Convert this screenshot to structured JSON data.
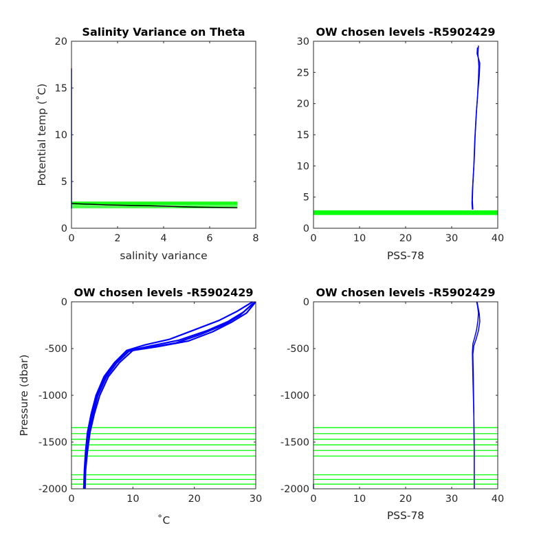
{
  "chart_data": [
    {
      "type": "line",
      "title": "Salinity Variance on Theta",
      "xlabel": "salinity variance",
      "ylabel": "Potential temp (˚C)",
      "xlim": [
        0,
        8
      ],
      "ylim": [
        0,
        20
      ],
      "xticks": [
        "0",
        "2",
        "4",
        "6",
        "8"
      ],
      "yticks": [
        "0",
        "5",
        "10",
        "15",
        "20"
      ],
      "series": [
        {
          "color": "#0000ff",
          "x": [
            0,
            0
          ],
          "y": [
            2.1,
            17.1
          ]
        },
        {
          "color": "#000000",
          "x": [
            0,
            1.5,
            3.5,
            5.5,
            7.2
          ],
          "y": [
            2.65,
            2.5,
            2.4,
            2.25,
            2.2
          ]
        }
      ],
      "chosen_levels": {
        "color": "#00ff00",
        "x_extent": [
          0,
          7.2
        ],
        "y": [
          2.2,
          2.35,
          2.5,
          2.6,
          2.7,
          2.8
        ]
      }
    },
    {
      "type": "line",
      "title": "OW chosen levels -R5902429",
      "xlabel": "PSS-78",
      "ylabel": "",
      "xlim": [
        0,
        40
      ],
      "ylim": [
        0,
        30
      ],
      "xticks": [
        "0",
        "10",
        "20",
        "30",
        "40"
      ],
      "yticks": [
        "0",
        "5",
        "10",
        "15",
        "20",
        "25",
        "30"
      ],
      "series": [
        {
          "color": "#0000ff",
          "x": [
            34.5,
            34.4,
            34.5,
            34.8,
            35.0,
            35.3,
            35.6,
            35.8,
            35.9,
            35.7,
            35.8
          ],
          "y": [
            3,
            4,
            6,
            10,
            14,
            18,
            21,
            24,
            26,
            28,
            29.3
          ]
        },
        {
          "color": "#0000ff",
          "x": [
            34.6,
            34.5,
            34.6,
            34.9,
            35.1,
            35.4,
            35.7,
            36.0,
            36.1,
            35.5,
            35.6
          ],
          "y": [
            3,
            4.5,
            7,
            11,
            15,
            19,
            22,
            24.5,
            26.5,
            28,
            29
          ]
        }
      ],
      "chosen_levels": {
        "color": "#00ff00",
        "x_extent": [
          0,
          40
        ],
        "y": [
          2.2,
          2.35,
          2.5,
          2.6,
          2.7,
          2.8
        ]
      }
    },
    {
      "type": "line",
      "title": "OW chosen levels -R5902429",
      "xlabel": "˚C",
      "ylabel": "Pressure (dbar)",
      "xlim": [
        0,
        30
      ],
      "ylim": [
        -2000,
        0
      ],
      "xticks": [
        "0",
        "10",
        "20",
        "30"
      ],
      "yticks": [
        "-2000",
        "-1500",
        "-1000",
        "-500",
        "0"
      ],
      "series": [
        {
          "color": "#0000ff",
          "x": [
            2.0,
            2.1,
            2.3,
            2.6,
            3.2,
            4.0,
            5.3,
            7.0,
            9.0,
            12.0,
            16.0,
            20.0,
            24.0,
            27.0,
            29.5
          ],
          "y": [
            -2000,
            -1800,
            -1600,
            -1400,
            -1200,
            -1000,
            -800,
            -650,
            -520,
            -460,
            -400,
            -300,
            -200,
            -100,
            0
          ]
        },
        {
          "color": "#0000ff",
          "x": [
            2.2,
            2.3,
            2.6,
            3.0,
            3.7,
            4.6,
            6.0,
            7.8,
            10.0,
            14.0,
            19.0,
            23.0,
            26.0,
            28.5,
            30.0
          ],
          "y": [
            -2000,
            -1800,
            -1600,
            -1400,
            -1200,
            -1000,
            -800,
            -650,
            -520,
            -480,
            -420,
            -320,
            -220,
            -120,
            0
          ]
        },
        {
          "color": "#0000ff",
          "x": [
            2.1,
            2.2,
            2.5,
            2.8,
            3.5,
            4.3,
            5.7,
            7.4,
            9.5,
            13.0,
            17.5,
            22.0,
            25.5,
            28.0,
            29.8
          ],
          "y": [
            -2000,
            -1800,
            -1600,
            -1400,
            -1200,
            -1000,
            -800,
            -650,
            -520,
            -470,
            -410,
            -310,
            -210,
            -110,
            -5
          ]
        },
        {
          "color": "#0000ff",
          "x": [
            2.0,
            2.15,
            2.4,
            2.7,
            3.3,
            4.2,
            5.5,
            7.2,
            9.2,
            12.5,
            17.0,
            21.0,
            25.0,
            27.5,
            29.5
          ],
          "y": [
            -2000,
            -1800,
            -1600,
            -1400,
            -1200,
            -1000,
            -800,
            -650,
            -530,
            -490,
            -440,
            -350,
            -240,
            -140,
            -20
          ]
        }
      ],
      "chosen_levels": {
        "color": "#00ff00",
        "x_extent": [
          0,
          30
        ],
        "y": [
          -1345,
          -1410,
          -1470,
          -1530,
          -1590,
          -1650,
          -1850,
          -1900,
          -1950
        ]
      }
    },
    {
      "type": "line",
      "title": "OW chosen levels -R5902429",
      "xlabel": "PSS-78",
      "ylabel": "",
      "xlim": [
        0,
        40
      ],
      "ylim": [
        -2000,
        0
      ],
      "xticks": [
        "0",
        "10",
        "20",
        "30",
        "40"
      ],
      "yticks": [
        "-2000",
        "-1500",
        "-1000",
        "-500",
        "0"
      ],
      "series": [
        {
          "color": "#0000ff",
          "x": [
            34.9,
            34.9,
            34.8,
            34.6,
            34.5,
            34.6,
            35.0,
            35.4,
            35.7,
            35.8,
            35.6,
            35.4
          ],
          "y": [
            -2000,
            -1600,
            -1200,
            -800,
            -550,
            -450,
            -380,
            -300,
            -200,
            -120,
            -40,
            0
          ]
        },
        {
          "color": "#0000ff",
          "x": [
            34.9,
            34.9,
            34.8,
            34.7,
            34.6,
            34.8,
            35.3,
            35.8,
            36.1,
            36.0,
            35.7,
            35.5
          ],
          "y": [
            -2000,
            -1600,
            -1200,
            -800,
            -560,
            -470,
            -400,
            -310,
            -210,
            -130,
            -50,
            0
          ]
        }
      ],
      "outlier": {
        "color": "#0000ff",
        "x": [
          0,
          0
        ],
        "y": [
          -2000,
          -1950
        ]
      },
      "chosen_levels": {
        "color": "#00ff00",
        "x_extent": [
          0,
          40
        ],
        "y": [
          -1345,
          -1410,
          -1470,
          -1530,
          -1590,
          -1650,
          -1850,
          -1900,
          -1950
        ]
      }
    }
  ]
}
